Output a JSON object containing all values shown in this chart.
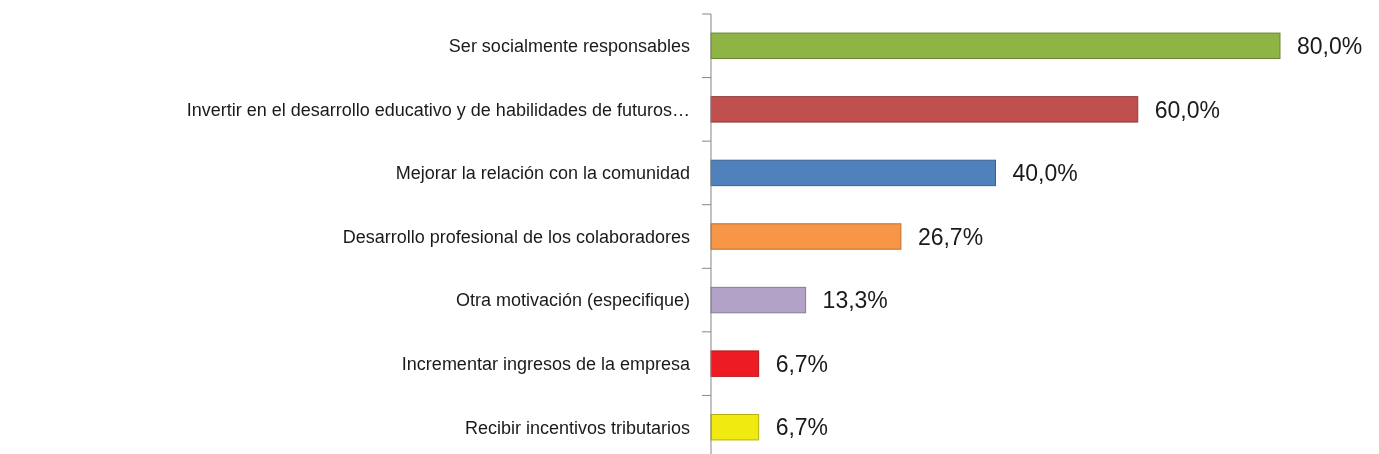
{
  "chart_data": {
    "type": "bar",
    "orientation": "horizontal",
    "categories": [
      "Ser socialmente responsables",
      "Invertir en el desarrollo educativo y de habilidades de futuros…",
      "Mejorar la relación con la comunidad",
      "Desarrollo profesional de los colaboradores",
      "Otra motivación (especifique)",
      "Incrementar ingresos de la empresa",
      "Recibir incentivos tributarios"
    ],
    "values": [
      80,
      60,
      40,
      26.7,
      13.3,
      6.7,
      6.7
    ],
    "colors": [
      "#8db445",
      "#c0504d",
      "#4f81bd",
      "#f79646",
      "#b3a2c7",
      "#ed1c24",
      "#f0ea10"
    ],
    "value_labels": [
      "80,0%",
      "60,0%",
      "40,0%",
      "26,7%",
      "13,3%",
      "6,7%",
      "6,7%"
    ],
    "tick_labels": "y"
  }
}
